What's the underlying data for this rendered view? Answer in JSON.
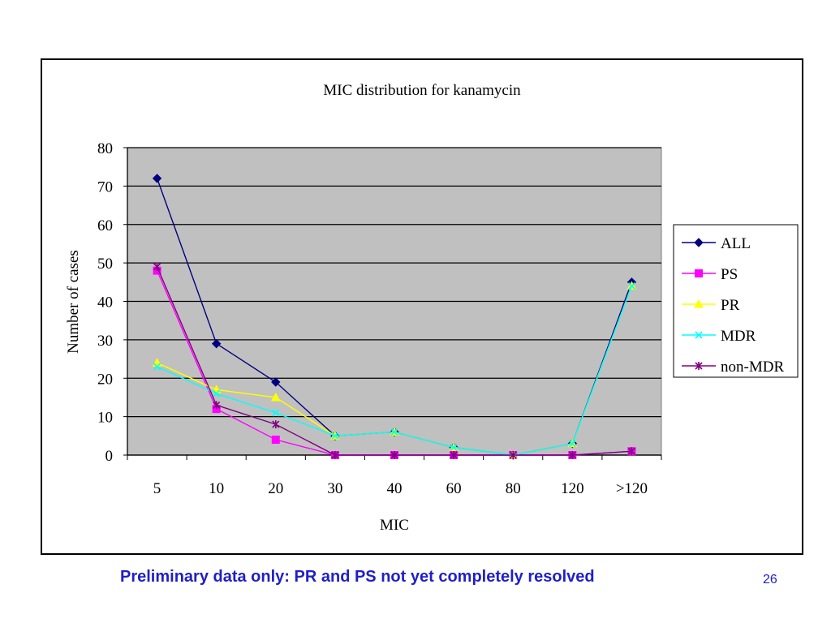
{
  "slide": {
    "footer_note": "Preliminary data only: PR and PS not yet completely resolved",
    "slide_number": "26"
  },
  "chart_data": {
    "type": "line",
    "title": "MIC distribution for kanamycin",
    "xlabel": "MIC",
    "ylabel": "Number of cases",
    "categories": [
      "5",
      "10",
      "20",
      "30",
      "40",
      "60",
      "80",
      "120",
      ">120"
    ],
    "ylim": [
      0,
      80
    ],
    "yticks": [
      0,
      10,
      20,
      30,
      40,
      50,
      60,
      70,
      80
    ],
    "grid": true,
    "legend_position": "right",
    "series": [
      {
        "name": "ALL",
        "color": "#00007f",
        "marker": "diamond",
        "values": [
          72,
          29,
          19,
          5,
          6,
          2,
          0,
          3,
          45
        ]
      },
      {
        "name": "PS",
        "color": "#ff00ff",
        "marker": "square",
        "values": [
          48,
          12,
          4,
          0,
          0,
          0,
          0,
          0,
          1
        ]
      },
      {
        "name": "PR",
        "color": "#ffff00",
        "marker": "triangle",
        "values": [
          24,
          17,
          15,
          5,
          6,
          2,
          0,
          3,
          44
        ]
      },
      {
        "name": "MDR",
        "color": "#00ffff",
        "marker": "x",
        "values": [
          23,
          16,
          11,
          5,
          6,
          2,
          0,
          3,
          44
        ]
      },
      {
        "name": "non-MDR",
        "color": "#800080",
        "marker": "star",
        "values": [
          49,
          13,
          8,
          0,
          0,
          0,
          0,
          0,
          1
        ]
      }
    ]
  }
}
